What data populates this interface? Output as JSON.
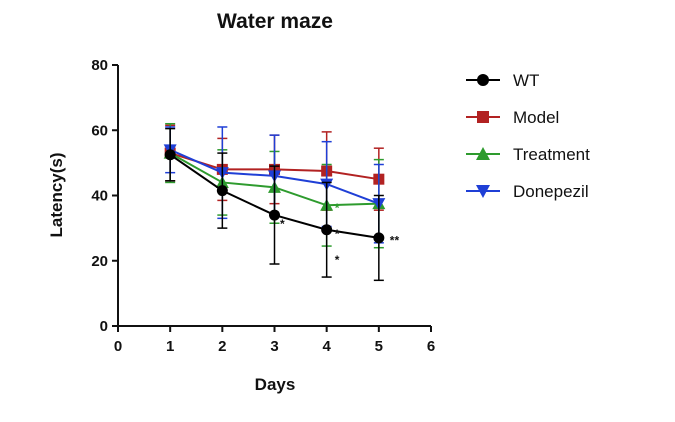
{
  "chart_data": {
    "type": "line",
    "title": "Water maze",
    "xlabel": "Days",
    "ylabel": "Latency(s)",
    "xlim": [
      0,
      6
    ],
    "ylim": [
      0,
      80
    ],
    "xticks": [
      0,
      1,
      2,
      3,
      4,
      5,
      6
    ],
    "yticks": [
      0,
      20,
      40,
      60,
      80
    ],
    "legend_position": "right",
    "x": [
      1,
      2,
      3,
      4,
      5
    ],
    "series": [
      {
        "name": "WT",
        "color": "#000000",
        "marker": "circle",
        "values": [
          52.5,
          41.5,
          34,
          29.5,
          27
        ],
        "errors": [
          8,
          11.5,
          15,
          14.5,
          13
        ]
      },
      {
        "name": "Model",
        "color": "#b22222",
        "marker": "square",
        "values": [
          53,
          48,
          48,
          47.5,
          45
        ],
        "errors": [
          8.5,
          9.5,
          10.5,
          12,
          9.5
        ]
      },
      {
        "name": "Treatment",
        "color": "#2e9b2e",
        "marker": "triangle-up",
        "values": [
          53,
          44,
          42.5,
          37,
          37.5
        ],
        "errors": [
          9,
          10,
          11,
          12.5,
          13.5
        ]
      },
      {
        "name": "Donepezil",
        "color": "#1f3fd6",
        "marker": "triangle-down",
        "values": [
          54,
          47,
          46,
          43.5,
          37.5
        ],
        "errors": [
          7,
          14,
          12.5,
          13,
          12
        ]
      }
    ],
    "annotations": [
      {
        "text": "*",
        "x": 3.15,
        "y": 30,
        "color": "#111111"
      },
      {
        "text": "*",
        "x": 4.2,
        "y": 27,
        "color": "#111111"
      },
      {
        "text": "*",
        "x": 4.2,
        "y": 19,
        "color": "#111111"
      },
      {
        "text": "*",
        "x": 4.2,
        "y": 35,
        "color": "#2e9b2e"
      },
      {
        "text": "**",
        "x": 5.3,
        "y": 25,
        "color": "#111111"
      }
    ]
  }
}
